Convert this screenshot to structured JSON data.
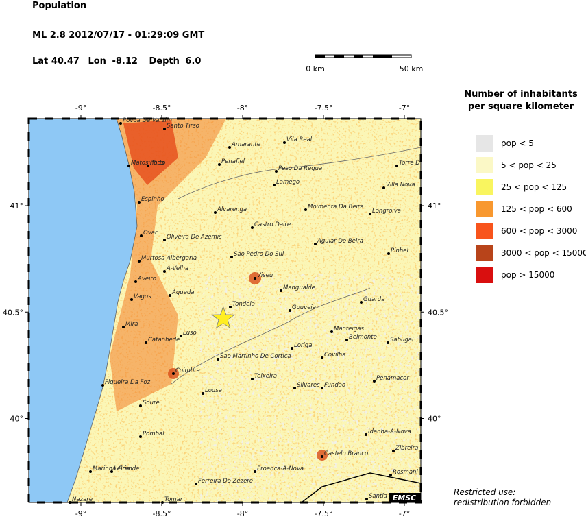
{
  "header": {
    "title": "Population",
    "event": "ML 2.8  2012/07/17 - 01:29:09 GMT",
    "lat_label": "Lat",
    "lat": 40.47,
    "lon_label": "Lon",
    "lon": -8.12,
    "depth_label": "Depth",
    "depth": "6.0"
  },
  "scale": {
    "start": "0 km",
    "end": "50 km"
  },
  "map": {
    "xticks": [
      {
        "value": -9,
        "label": "-9°"
      },
      {
        "value": -8.5,
        "label": "-8.5°"
      },
      {
        "value": -8,
        "label": "-8°"
      },
      {
        "value": -7.5,
        "label": "-7.5°"
      },
      {
        "value": -7,
        "label": "-7°"
      }
    ],
    "yticks": [
      {
        "value": 41,
        "label": "41°"
      },
      {
        "value": 40.5,
        "label": "40.5°"
      },
      {
        "value": 40,
        "label": "40°"
      }
    ],
    "towns": [
      "Povoa De Varzim",
      "Santo Tirso",
      "Matosinhos",
      "Porto",
      "Amarante",
      "Vila Real",
      "Penafiel",
      "Peso Da Regua",
      "Lamego",
      "Torre D",
      "Villa Nova",
      "Espinho",
      "Alvarenga",
      "Moimenta Da Beira",
      "Longroiva",
      "Castro Daire",
      "Ovar",
      "Oliveira De Azemis",
      "Aguiar De Beira",
      "Murtosa Albergaria",
      "Sao Pedro Do Sul",
      "Pinhel",
      "A-Velha",
      "Aveiro",
      "Viseu",
      "Mangualde",
      "Agueda",
      "Vagos",
      "Guarda",
      "Tondela",
      "Gouveia",
      "Mira",
      "Manteigas",
      "Luso",
      "Catanhede",
      "Belmonte",
      "Sabugal",
      "Loriga",
      "Sao Martinho De Cortica",
      "Covilha",
      "Coimbra",
      "Teixeira",
      "Penamacor",
      "Figueira Da Foz",
      "Silvares",
      "Fundao",
      "Lousa",
      "Soure",
      "Pombal",
      "Idanha-A-Nova",
      "Zibreira",
      "Castelo Branco",
      "Marinha Grande",
      "Leiria",
      "Proenca-A-Nova",
      "Rosmani",
      "Ferreira Do Zezere",
      "Nazare",
      "Tomar",
      "Santia"
    ],
    "badge": "EMSC"
  },
  "legend": {
    "title": "Number of inhabitants\nper square kilometer",
    "items": [
      {
        "label": "pop < 5",
        "color": "#e6e6e6"
      },
      {
        "label": "5 < pop < 25",
        "color": "#fbf8c6"
      },
      {
        "label": "25 < pop < 125",
        "color": "#f9f55f"
      },
      {
        "label": "125 < pop < 600",
        "color": "#f8982f"
      },
      {
        "label": "600 < pop < 3000",
        "color": "#f8541c"
      },
      {
        "label": "3000 < pop < 15000",
        "color": "#b8441a"
      },
      {
        "label": "pop > 15000",
        "color": "#d90f0f"
      }
    ]
  },
  "note": "Restricted use:\nredistribution forbidden"
}
